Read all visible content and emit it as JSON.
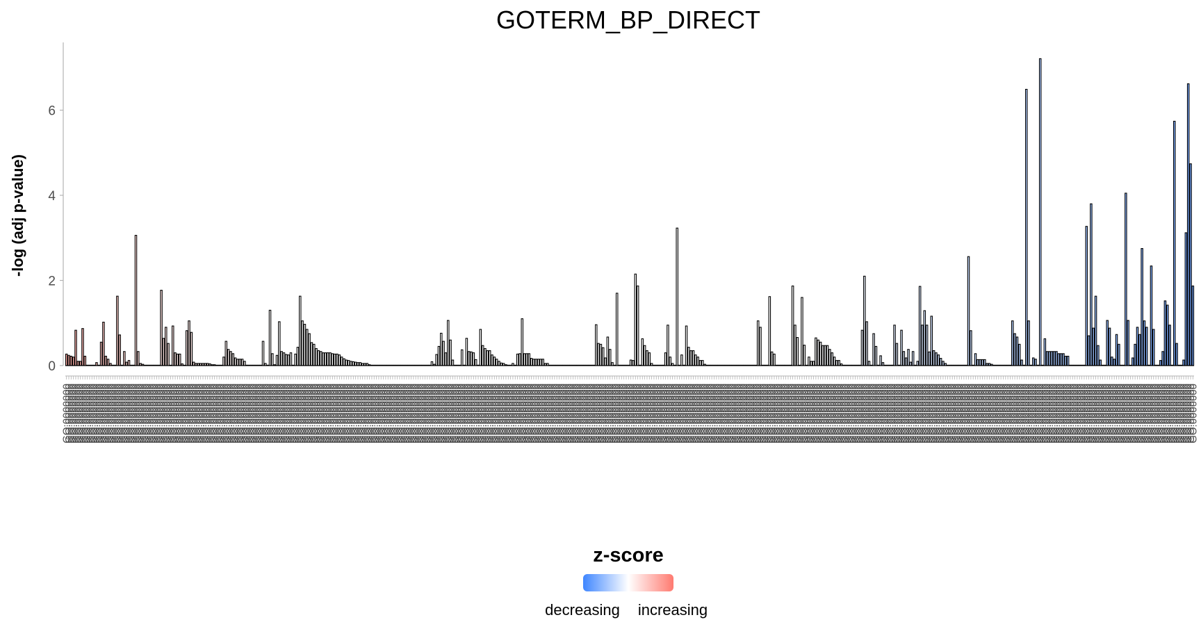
{
  "chart_data": {
    "type": "bar",
    "title": "GOTERM_BP_DIRECT",
    "xlabel": "",
    "ylabel": "-log (adj p-value)",
    "ylim": [
      0,
      7.2
    ],
    "yticks": [
      0,
      2,
      4,
      6
    ],
    "grid": false,
    "x_tick_label_example": "GO:0000000",
    "legend": {
      "title": "z-score",
      "low_label": "decreasing",
      "high_label": "increasing",
      "low_color": "#3f86ff",
      "mid_color": "#ffffff",
      "high_color": "#ff7a70",
      "placement": "bottom"
    },
    "series": [
      {
        "name": "-log (adj p-value)",
        "values": [
          0.27,
          0.24,
          0.22,
          0.2,
          0.83,
          0.1,
          0.1,
          0.87,
          0.22,
          0,
          0,
          0,
          0,
          0.07,
          0,
          0.55,
          1.02,
          0.22,
          0.15,
          0.05,
          0,
          0,
          1.63,
          0.72,
          0,
          0.33,
          0.08,
          0.12,
          0,
          0,
          3.06,
          0.33,
          0.05,
          0.03,
          0,
          0,
          0,
          0,
          0,
          0,
          0,
          1.77,
          0.64,
          0.9,
          0.52,
          0,
          0.93,
          0.3,
          0.27,
          0.27,
          0.04,
          0,
          0.82,
          1.05,
          0.78,
          0.08,
          0.05,
          0.05,
          0.05,
          0.05,
          0.05,
          0.05,
          0.04,
          0.02,
          0.02,
          0,
          0,
          0,
          0.2,
          0.57,
          0.38,
          0.33,
          0.28,
          0.18,
          0.15,
          0.15,
          0.15,
          0.1,
          0,
          0,
          0,
          0,
          0,
          0,
          0,
          0.57,
          0.05,
          0,
          1.3,
          0.28,
          0.02,
          0.24,
          1.03,
          0.33,
          0.3,
          0.26,
          0.25,
          0.3,
          0,
          0.27,
          0.43,
          1.63,
          1.05,
          0.97,
          0.85,
          0.75,
          0.54,
          0.5,
          0.4,
          0.35,
          0.33,
          0.3,
          0.3,
          0.3,
          0.3,
          0.28,
          0.27,
          0.27,
          0.25,
          0.2,
          0.16,
          0.13,
          0.12,
          0.1,
          0.09,
          0.08,
          0.07,
          0.07,
          0.05,
          0.05,
          0.05,
          0.02,
          0,
          0,
          0,
          0,
          0,
          0,
          0,
          0,
          0,
          0,
          0,
          0,
          0,
          0,
          0,
          0,
          0,
          0,
          0,
          0,
          0,
          0,
          0,
          0,
          0,
          0,
          0.09,
          0.03,
          0.26,
          0.45,
          0.76,
          0.57,
          0.3,
          1.06,
          0.6,
          0.13,
          0,
          0,
          0,
          0.37,
          0,
          0.64,
          0.33,
          0.32,
          0.3,
          0.14,
          0,
          0.85,
          0.47,
          0.4,
          0.35,
          0.35,
          0.25,
          0.2,
          0.15,
          0.1,
          0.06,
          0.05,
          0.02,
          0,
          0,
          0.05,
          0,
          0.27,
          0.28,
          1.1,
          0.28,
          0.28,
          0.28,
          0.17,
          0.15,
          0.15,
          0.15,
          0.15,
          0.15,
          0.05,
          0.05,
          0,
          0,
          0,
          0,
          0,
          0,
          0,
          0,
          0,
          0,
          0,
          0,
          0,
          0,
          0,
          0,
          0,
          0,
          0,
          0,
          0.96,
          0.52,
          0.5,
          0.42,
          0.18,
          0.67,
          0.38,
          0.07,
          0,
          1.7,
          0,
          0,
          0,
          0,
          0,
          0.13,
          0.12,
          2.15,
          1.87,
          0,
          0.63,
          0.47,
          0.35,
          0.3,
          0.05,
          0,
          0,
          0,
          0,
          0,
          0.3,
          0.95,
          0.2,
          0.05,
          0,
          3.23,
          0,
          0.25,
          0,
          0.93,
          0.43,
          0.35,
          0.35,
          0.25,
          0.2,
          0.12,
          0.12,
          0.03,
          0,
          0,
          0,
          0,
          0,
          0,
          0,
          0,
          0,
          0,
          0,
          0,
          0,
          0,
          0,
          0,
          0,
          0,
          0,
          0,
          0,
          0,
          1.05,
          0.9,
          0,
          0,
          0,
          1.62,
          0.32,
          0.27,
          0,
          0,
          0,
          0,
          0,
          0,
          0,
          1.87,
          0.95,
          0.66,
          0,
          1.6,
          0.48,
          0,
          0.2,
          0.1,
          0.1,
          0.65,
          0.6,
          0.55,
          0.47,
          0.47,
          0.47,
          0.38,
          0.3,
          0.2,
          0.12,
          0.12,
          0.04,
          0,
          0,
          0,
          0,
          0,
          0,
          0,
          0,
          0.83,
          2.1,
          1.03,
          0.1,
          0,
          0.75,
          0.45,
          0,
          0.23,
          0.07,
          0,
          0,
          0,
          0,
          0.95,
          0.52,
          0,
          0.83,
          0.33,
          0.18,
          0.38,
          0.08,
          0.33,
          0,
          0.1,
          1.86,
          0.95,
          1.29,
          0.95,
          0.32,
          1.16,
          0.35,
          0.3,
          0.25,
          0.17,
          0.1,
          0.05,
          0,
          0,
          0,
          0,
          0,
          0,
          0,
          0,
          0,
          2.56,
          0.82,
          0,
          0.28,
          0.14,
          0.14,
          0.14,
          0.14,
          0.05,
          0.05,
          0.03,
          0,
          0,
          0,
          0,
          0,
          0,
          0,
          0,
          1.05,
          0.75,
          0.67,
          0.5,
          0.13,
          0,
          6.49,
          1.05,
          0,
          0.18,
          0.15,
          0,
          7.21,
          0,
          0.63,
          0.33,
          0.33,
          0.33,
          0.33,
          0.33,
          0.28,
          0.28,
          0.28,
          0.22,
          0.22,
          0,
          0,
          0,
          0,
          0,
          0,
          0,
          3.27,
          0.7,
          3.8,
          0.88,
          1.63,
          0.47,
          0.13,
          0,
          0,
          1.06,
          0.88,
          0.2,
          0.15,
          0.73,
          0.5,
          0,
          0,
          4.05,
          1.06,
          0,
          0.18,
          0.5,
          0.9,
          0.73,
          2.75,
          1.05,
          0.9,
          0,
          2.34,
          0.85,
          0,
          0,
          0.12,
          0.33,
          1.52,
          1.42,
          0.95,
          0,
          5.74,
          0.52,
          0,
          0,
          0.13,
          3.12,
          6.62,
          4.74,
          1.87
        ],
        "zscores": [
          0.48,
          0.47,
          0.46,
          0.45,
          0.44,
          0.43,
          0.42,
          0.41,
          0.4,
          0.4,
          0.39,
          0.38,
          0.37,
          0.36,
          0.35,
          0.34,
          0.33,
          0.32,
          0.31,
          0.3,
          0.29,
          0.29,
          0.28,
          0.27,
          0.26,
          0.25,
          0.24,
          0.23,
          0.22,
          0.21,
          0.2,
          0.19,
          0.18,
          0.18,
          0.18,
          0.17,
          0.17,
          0.17,
          0.16,
          0.16,
          0.16,
          0.16,
          0.15,
          0.15,
          0.15,
          0.14,
          0.14,
          0.14,
          0.13,
          0.13,
          0.13,
          0.13,
          0.12,
          0.12,
          0.12,
          0.11,
          0.11,
          0.11,
          0.1,
          0.1,
          0.1,
          0.1,
          0.09,
          0.09,
          0.09,
          0.08,
          0.08,
          0.08,
          0.07,
          0.07,
          0.07,
          0.07,
          0.06,
          0.06,
          0.06,
          0.05,
          0.05,
          0.05,
          0.04,
          0.04,
          0.04,
          0.04,
          0.03,
          0.03,
          0.03,
          0.02,
          0.02,
          0.02,
          0.01,
          0.01,
          0.01,
          0.01,
          0,
          0,
          0,
          0,
          0,
          0,
          0,
          0,
          0,
          0,
          0,
          0,
          0,
          0,
          0,
          0,
          0,
          0,
          0,
          0,
          0,
          0,
          0,
          0,
          0,
          0,
          0,
          0,
          0,
          0,
          0,
          0,
          0,
          0,
          0,
          0,
          0,
          0,
          0,
          0,
          0,
          0,
          0,
          0,
          0,
          0,
          0,
          0,
          0,
          0,
          0,
          0,
          0,
          0,
          0,
          0,
          0,
          0,
          0,
          0,
          0,
          0,
          0,
          0,
          0,
          0,
          0,
          0,
          0,
          0,
          0,
          0,
          0,
          0,
          0,
          0,
          0,
          0,
          0,
          0,
          0,
          0,
          0,
          0,
          0,
          0,
          0,
          0,
          0,
          0,
          0,
          0,
          0,
          0,
          0,
          0,
          0,
          0,
          0,
          0,
          0,
          0,
          0,
          0,
          0,
          0,
          0,
          0,
          0,
          0,
          0,
          0,
          0,
          0,
          0,
          0,
          0,
          0,
          0,
          0,
          0,
          0,
          0,
          0,
          0,
          0,
          0,
          0,
          0,
          0,
          0,
          0,
          0,
          0,
          0,
          0,
          0,
          0,
          0,
          0,
          0,
          0,
          0,
          0,
          0,
          0,
          0,
          0,
          0,
          0,
          0,
          0,
          0,
          0,
          0,
          0,
          0,
          0,
          0,
          0,
          0,
          0,
          0,
          0,
          0,
          0,
          0,
          0,
          0,
          0,
          0,
          0,
          0,
          0,
          0,
          0,
          0,
          0,
          0,
          0,
          0,
          0,
          0,
          0,
          0,
          0,
          0,
          0,
          0,
          0,
          0,
          0,
          0,
          0,
          0,
          0,
          0,
          0,
          0,
          0,
          0,
          0,
          0,
          0,
          0,
          0,
          0,
          0,
          0,
          0,
          0,
          0,
          0,
          0,
          0,
          0,
          0,
          0,
          0,
          0,
          0,
          0,
          0,
          0,
          0,
          0,
          0,
          0,
          0,
          0,
          0,
          0,
          0,
          -0.01,
          -0.01,
          -0.01,
          -0.02,
          -0.02,
          -0.02,
          -0.03,
          -0.03,
          -0.03,
          -0.04,
          -0.04,
          -0.04,
          -0.05,
          -0.05,
          -0.05,
          -0.06,
          -0.06,
          -0.06,
          -0.07,
          -0.07,
          -0.07,
          -0.08,
          -0.08,
          -0.08,
          -0.09,
          -0.09,
          -0.09,
          -0.1,
          -0.1,
          -0.1,
          -0.11,
          -0.11,
          -0.11,
          -0.12,
          -0.12,
          -0.12,
          -0.13,
          -0.13,
          -0.13,
          -0.14,
          -0.14,
          -0.14,
          -0.15,
          -0.15,
          -0.15,
          -0.16,
          -0.16,
          -0.16,
          -0.17,
          -0.17,
          -0.17,
          -0.18,
          -0.18,
          -0.18,
          -0.19,
          -0.19,
          -0.19,
          -0.2,
          -0.2,
          -0.2,
          -0.21,
          -0.21,
          -0.21,
          -0.22,
          -0.22,
          -0.22,
          -0.23,
          -0.23,
          -0.23,
          -0.24,
          -0.24,
          -0.24,
          -0.25,
          -0.25,
          -0.25,
          -0.26,
          -0.26,
          -0.26,
          -0.27,
          -0.27,
          -0.27,
          -0.28,
          -0.28,
          -0.28,
          -0.29,
          -0.29,
          -0.29,
          -0.3,
          -0.3,
          -0.3,
          -0.31,
          -0.31,
          -0.31,
          -0.32,
          -0.32,
          -0.32,
          -0.33,
          -0.33,
          -0.33,
          -0.34,
          -0.34,
          -0.34,
          -0.35,
          -0.35,
          -0.35,
          -0.36,
          -0.36,
          -0.36,
          -0.37,
          -0.37,
          -0.37,
          -0.38,
          -0.38,
          -0.38,
          -0.39,
          -0.39,
          -0.39,
          -0.4,
          -0.4,
          -0.4,
          -0.41,
          -0.41,
          -0.41,
          -0.42,
          -0.42,
          -0.42,
          -0.43,
          -0.43,
          -0.43,
          -0.44,
          -0.44,
          -0.44,
          -0.45,
          -0.45,
          -0.45,
          -0.46,
          -0.46,
          -0.46,
          -0.47,
          -0.47,
          -0.47,
          -0.48,
          -0.48,
          -0.48,
          -0.49,
          -0.49,
          -0.49,
          -0.5,
          -0.5,
          -0.5,
          -0.51,
          -0.51,
          -0.51,
          -0.52,
          -0.52,
          -0.52,
          -0.53,
          -0.53,
          -0.53,
          -0.54,
          -0.54,
          -0.54,
          -0.55,
          -0.55,
          -0.55,
          -0.56,
          -0.56,
          -0.56,
          -0.57,
          -0.57,
          -0.57,
          -0.58,
          -0.58,
          -0.58,
          -0.59,
          -0.59,
          -0.59,
          -0.6,
          -0.6,
          -0.6,
          -0.61,
          -0.61,
          -0.61,
          -0.62,
          -0.62,
          -0.62,
          -0.63,
          -0.63,
          -0.63,
          -0.64,
          -0.64,
          -0.64,
          -0.65,
          -0.65,
          -0.65,
          -0.66,
          -0.66,
          -0.66,
          -0.67,
          -0.67,
          -0.67,
          -0.68,
          -0.68,
          -0.68,
          -0.69,
          -0.69,
          -0.69,
          -0.7,
          -0.7,
          -0.7,
          -0.71,
          -0.71,
          -0.71,
          -0.72,
          -0.72,
          -0.72,
          -0.73,
          -0.73,
          -0.73,
          -0.74,
          -0.74,
          -0.74,
          -0.75,
          -0.75,
          -0.75,
          -0.76,
          -0.76,
          -0.76,
          -0.77,
          -0.77
        ]
      }
    ]
  }
}
